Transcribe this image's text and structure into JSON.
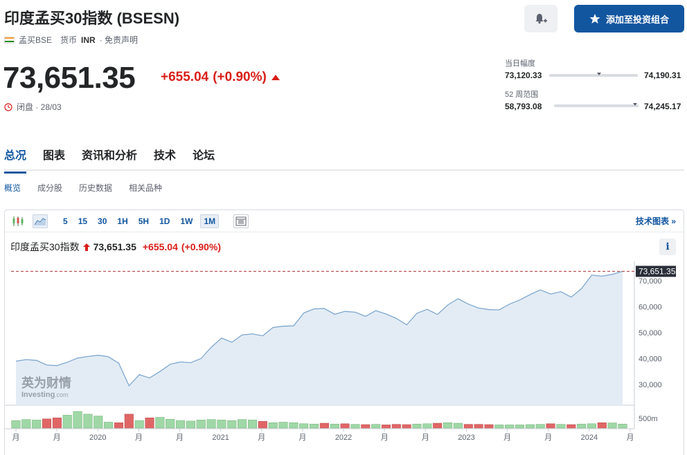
{
  "header": {
    "title": "印度孟买30指数 (BSESN)",
    "exchange": "孟买BSE",
    "currency_label": "货币",
    "currency": "INR",
    "disclaimer": "· 免责声明",
    "add_button": "添加至投资组合"
  },
  "quote": {
    "price": "73,651.35",
    "change": "+655.04",
    "change_pct": "(+0.90%)",
    "status": "闭盘 · 28/03"
  },
  "ranges": {
    "day_label": "当日幅度",
    "day_low": "73,120.33",
    "day_high": "74,190.31",
    "day_position": 0.56,
    "week52_label": "52 周范围",
    "week52_low": "58,793.08",
    "week52_high": "74,245.17",
    "week52_position": 0.96
  },
  "tabs": [
    "总况",
    "图表",
    "资讯和分析",
    "技术",
    "论坛"
  ],
  "subtabs": [
    "概览",
    "成分股",
    "历史数据",
    "相关品种"
  ],
  "toolbar": {
    "timeframes": [
      "5",
      "15",
      "30",
      "1H",
      "5H",
      "1D",
      "1W",
      "1M"
    ],
    "active_timeframe": "1M",
    "tech_chart_link": "技术图表 »"
  },
  "legend": {
    "name": "印度孟买30指数",
    "price": "73,651.35",
    "change": "+655.04",
    "change_pct": "(+0.90%)"
  },
  "watermark": {
    "cn": "英为财情",
    "en": "Investing",
    "suffix": ".com"
  },
  "colors": {
    "up": "#d91e18",
    "brand": "#1256a0",
    "area_fill": "#e3ecf5",
    "line": "#7fa8cf",
    "vol_up": "#9fd8a6",
    "vol_down": "#e06666"
  },
  "chart_data": {
    "type": "area",
    "x_ticks": [
      "月",
      "月",
      "2020",
      "月",
      "月",
      "2021",
      "月",
      "月",
      "2022",
      "月",
      "月",
      "2023",
      "月",
      "月",
      "2024",
      "月"
    ],
    "y_ticks": [
      "30,000",
      "40,000",
      "50,000",
      "60,000",
      "70,000"
    ],
    "ylim": [
      22000,
      77500
    ],
    "last_price_label": "73,651.35",
    "last_price": 73651,
    "volume_tick": "500m",
    "series": [
      {
        "values": [
          39000,
          39600,
          39300,
          37500,
          37300,
          38600,
          40200,
          40800,
          41300,
          40700,
          38200,
          29500,
          33800,
          32500,
          35000,
          37800,
          38700,
          38400,
          40000,
          44400,
          47900,
          46300,
          49100,
          49500,
          48800,
          52000,
          52500,
          52600,
          57600,
          59200,
          59300,
          57100,
          58200,
          57900,
          56300,
          58500,
          57200,
          55500,
          53000,
          57500,
          59000,
          57000,
          60700,
          63100,
          61000,
          59500,
          58900,
          58800,
          61000,
          62600,
          64700,
          66500,
          64900,
          65800,
          63700,
          67000,
          72200,
          71800,
          72500,
          73651
        ]
      }
    ],
    "volume": {
      "values": [
        28,
        32,
        30,
        34,
        38,
        48,
        62,
        52,
        45,
        22,
        20,
        52,
        28,
        38,
        40,
        33,
        28,
        26,
        30,
        32,
        30,
        28,
        32,
        30,
        25,
        20,
        22,
        20,
        16,
        15,
        18,
        15,
        16,
        14,
        13,
        14,
        12,
        14,
        13,
        15,
        16,
        18,
        20,
        18,
        14,
        14,
        13,
        12,
        12,
        12,
        13,
        14,
        16,
        14,
        13,
        15,
        16,
        20,
        19,
        15
      ],
      "up": [
        true,
        true,
        true,
        false,
        false,
        true,
        true,
        true,
        true,
        true,
        false,
        false,
        true,
        false,
        true,
        true,
        true,
        true,
        true,
        true,
        true,
        true,
        true,
        true,
        false,
        true,
        true,
        true,
        true,
        true,
        false,
        true,
        false,
        true,
        false,
        true,
        false,
        false,
        false,
        true,
        true,
        false,
        true,
        true,
        false,
        false,
        false,
        true,
        true,
        true,
        true,
        true,
        false,
        true,
        false,
        true,
        true,
        false,
        true,
        true
      ]
    }
  }
}
